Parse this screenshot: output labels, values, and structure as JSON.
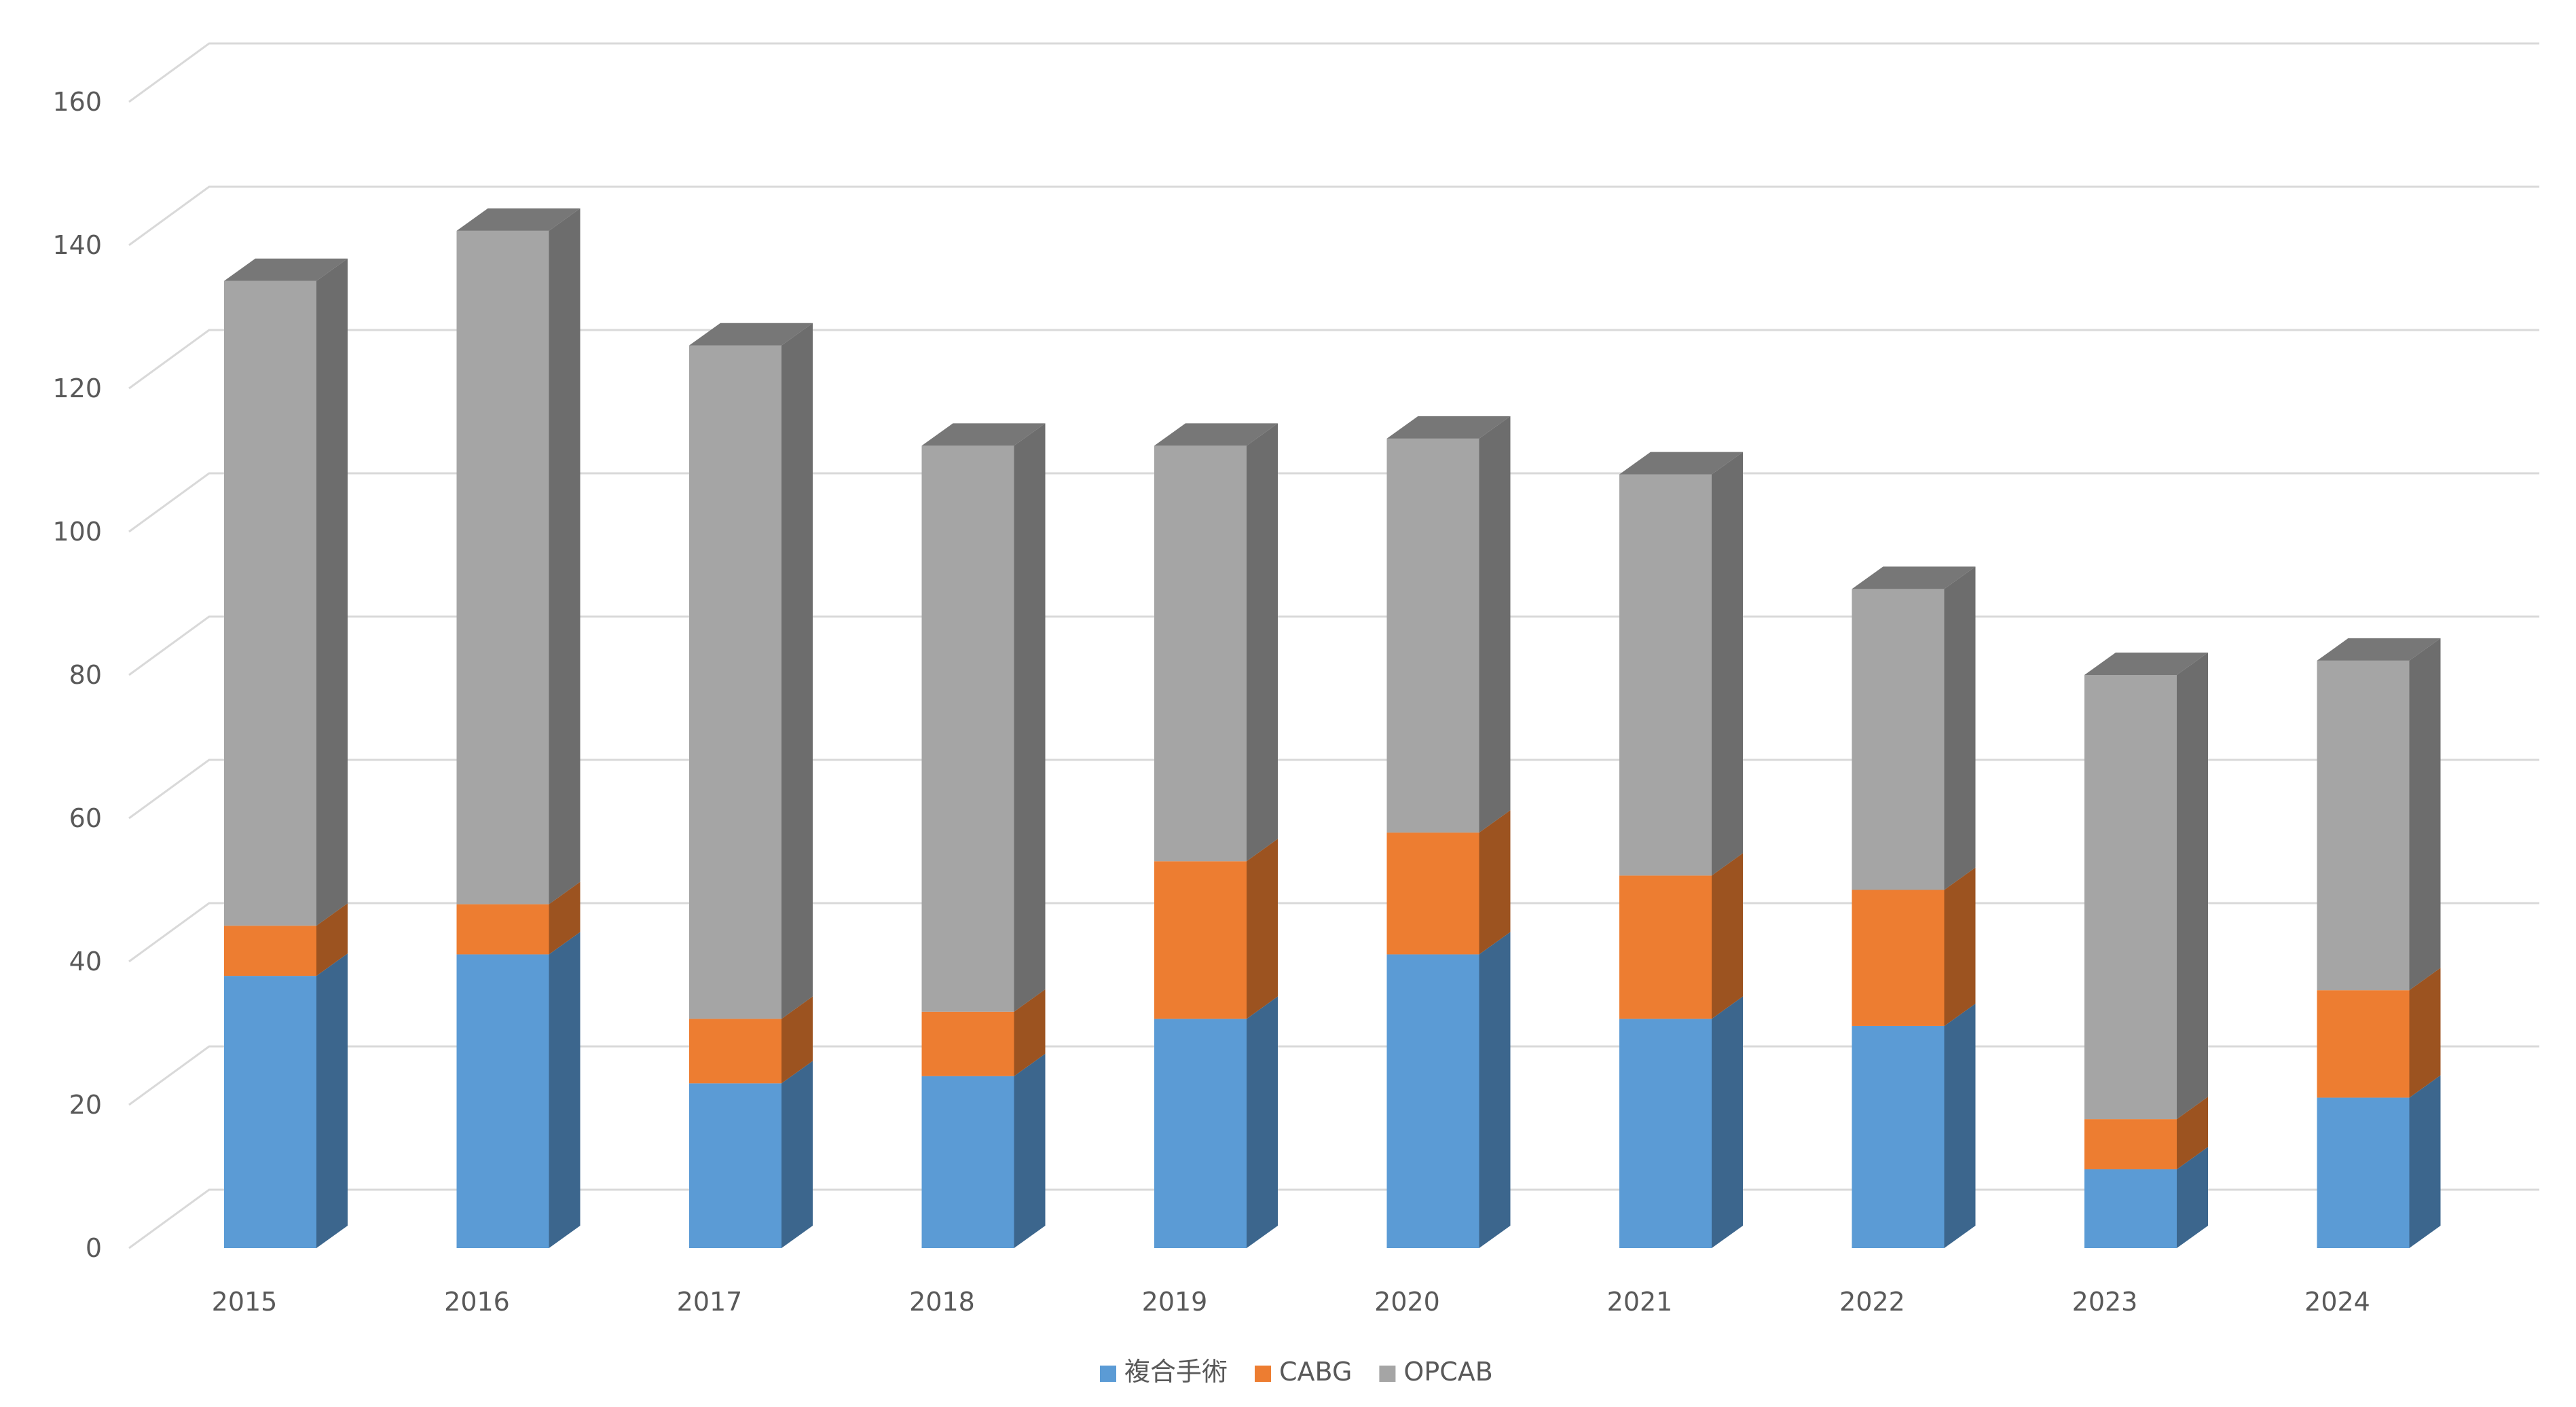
{
  "chart_data": {
    "type": "bar",
    "stacked": true,
    "style": "3d-column",
    "title": "",
    "xlabel": "",
    "ylabel": "",
    "ylim": [
      0,
      160
    ],
    "y_ticks": [
      "0",
      "20",
      "40",
      "60",
      "80",
      "100",
      "120",
      "140",
      "160"
    ],
    "grid": true,
    "legend_position": "bottom",
    "categories": [
      "2015",
      "2016",
      "2017",
      "2018",
      "2019",
      "2020",
      "2021",
      "2022",
      "2023",
      "2024"
    ],
    "series": [
      {
        "name": "複合手術",
        "color": "#5b9bd5",
        "values": [
          38,
          41,
          23,
          24,
          32,
          41,
          32,
          31,
          11,
          21
        ]
      },
      {
        "name": "CABG",
        "color": "#ed7d31",
        "values": [
          7,
          7,
          9,
          9,
          22,
          17,
          20,
          19,
          7,
          15
        ]
      },
      {
        "name": "OPCAB",
        "color": "#a5a5a5",
        "values": [
          90,
          94,
          94,
          79,
          58,
          55,
          56,
          42,
          62,
          46
        ]
      }
    ]
  }
}
